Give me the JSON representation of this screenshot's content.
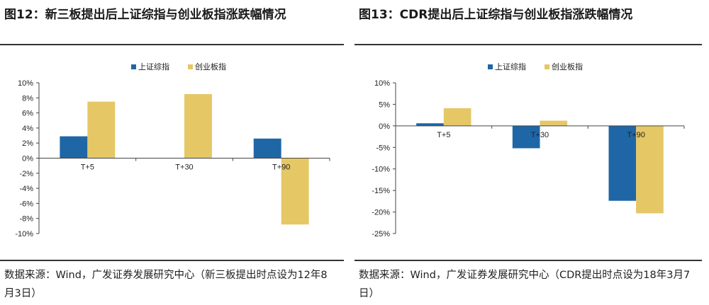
{
  "colors": {
    "series1": "#1f66a6",
    "series2": "#e5c766",
    "axis": "#444"
  },
  "panels": [
    {
      "title": "图12：新三板提出后上证综指与创业板指涨跌幅情况",
      "source": "数据来源：Wind，广发证券发展研究中心（新三板提出时点设为12年8月3日）"
    },
    {
      "title": "图13：CDR提出后上证综指与创业板指涨跌幅情况",
      "source": "数据来源：Wind，广发证券发展研究中心（CDR提出时点设为18年3月7日）"
    }
  ],
  "chart_data": [
    {
      "type": "bar",
      "title": "新三板提出后上证综指与创业板指涨跌幅情况",
      "categories": [
        "T+5",
        "T+30",
        "T+90"
      ],
      "series": [
        {
          "name": "上证综指",
          "values": [
            2.9,
            0,
            2.6
          ]
        },
        {
          "name": "创业板指",
          "values": [
            7.5,
            8.5,
            -8.8
          ]
        }
      ],
      "ylim": [
        -10,
        10
      ],
      "yticks": [
        10,
        8,
        6,
        4,
        2,
        0,
        -2,
        -4,
        -6,
        -8,
        -10
      ],
      "yunit": "%",
      "legend": "top-center",
      "grid": false
    },
    {
      "type": "bar",
      "title": "CDR提出后上证综指与创业板指涨跌幅情况",
      "categories": [
        "T+5",
        "T+30",
        "T+90"
      ],
      "series": [
        {
          "name": "上证综指",
          "values": [
            0.6,
            -5.2,
            -17.4
          ]
        },
        {
          "name": "创业板指",
          "values": [
            4.1,
            1.2,
            -20.3
          ]
        }
      ],
      "ylim": [
        -25,
        10
      ],
      "yticks": [
        10,
        5,
        0,
        -5,
        -10,
        -15,
        -20,
        -25
      ],
      "yunit": "%",
      "legend": "top-center",
      "grid": false
    }
  ]
}
